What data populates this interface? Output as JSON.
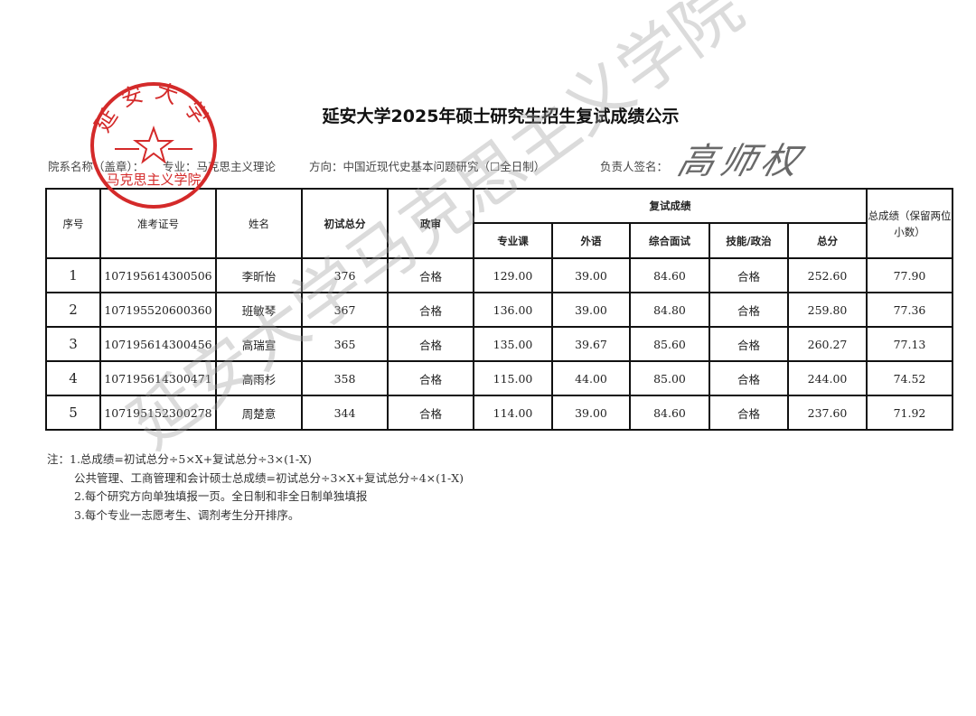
{
  "title": "延安大学2025年硕士研究生招生复试成绩公示",
  "stamp": {
    "top_text": "延安大学",
    "bottom_text": "马克思主义学院",
    "color": "#d42a2a"
  },
  "watermark": "延安大学马克思主义学院",
  "meta": {
    "department_label": "院系名称（盖章）：",
    "major": "专业：马克思主义理论",
    "direction": "方向：中国近现代史基本问题研究（☐全日制）",
    "signer_label": "负责人签名：",
    "signature": "高师权"
  },
  "table": {
    "headers": {
      "seq": "序号",
      "exam_id": "准考证号",
      "name": "姓名",
      "prelim": "初试总分",
      "political": "政审",
      "retest": "复试成绩",
      "retest_cols": [
        "专业课",
        "外语",
        "综合面试",
        "技能/政治",
        "总分"
      ],
      "total": "总成绩（保留两位小数）"
    },
    "rows": [
      [
        "1",
        "107195614300506",
        "李昕怡",
        "376",
        "合格",
        "129.00",
        "39.00",
        "84.60",
        "合格",
        "252.60",
        "77.90"
      ],
      [
        "2",
        "107195520600360",
        "班敏琴",
        "367",
        "合格",
        "136.00",
        "39.00",
        "84.80",
        "合格",
        "259.80",
        "77.36"
      ],
      [
        "3",
        "107195614300456",
        "高瑞宣",
        "365",
        "合格",
        "135.00",
        "39.67",
        "85.60",
        "合格",
        "260.27",
        "77.13"
      ],
      [
        "4",
        "107195614300471",
        "高雨杉",
        "358",
        "合格",
        "115.00",
        "44.00",
        "85.00",
        "合格",
        "244.00",
        "74.52"
      ],
      [
        "5",
        "107195152300278",
        "周楚意",
        "344",
        "合格",
        "114.00",
        "39.00",
        "84.60",
        "合格",
        "237.60",
        "71.92"
      ]
    ]
  },
  "notes": [
    "注：1.总成绩=初试总分÷5×X+复试总分÷3×(1-X)",
    "公共管理、工商管理和会计硕士总成绩=初试总分÷3×X+复试总分÷4×(1-X)",
    "2.每个研究方向单独填报一页。全日制和非全日制单独填报",
    "3.每个专业一志愿考生、调剂考生分开排序。"
  ]
}
